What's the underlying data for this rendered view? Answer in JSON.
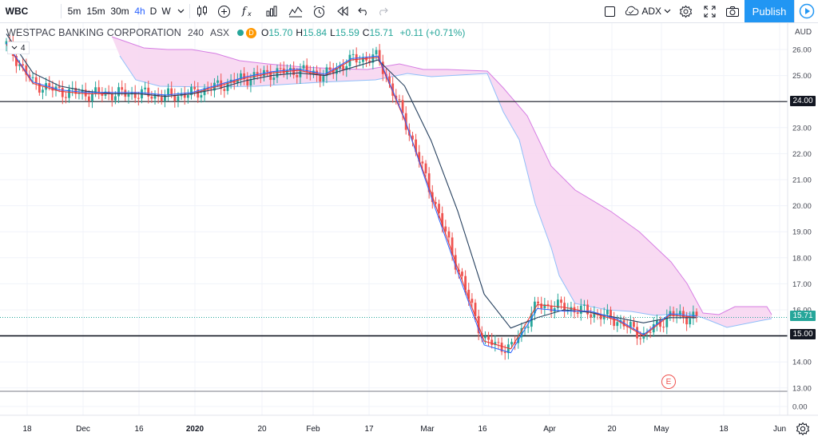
{
  "toolbar": {
    "symbol": "WBC",
    "intervals": [
      "5m",
      "15m",
      "30m",
      "4h",
      "D",
      "W"
    ],
    "active_interval": "4h",
    "indicator_name": "ADX",
    "publish_label": "Publish"
  },
  "legend": {
    "title": "WESTPAC BANKING CORPORATION",
    "resolution": "240",
    "exchange": "ASX",
    "badge": "D",
    "open_key": "O",
    "open": "15.70",
    "high_key": "H",
    "high": "15.84",
    "low_key": "L",
    "low": "15.59",
    "close_key": "C",
    "close": "15.71",
    "change": "+0.11 (+0.71%)",
    "indicator_count": "4"
  },
  "price_axis": {
    "currency": "AUD",
    "ticks": [
      "26.00",
      "25.00",
      "24.00",
      "23.00",
      "22.00",
      "21.00",
      "20.00",
      "19.00",
      "18.00",
      "17.00",
      "16.00",
      "15.00",
      "14.00",
      "13.00",
      "0.00"
    ],
    "level_labels": [
      "24.00",
      "15.00"
    ],
    "last_price_label": "15.71"
  },
  "time_axis": {
    "labels": [
      "18",
      "Dec",
      "16",
      "2020",
      "20",
      "Feb",
      "17",
      "Mar",
      "16",
      "Apr",
      "20",
      "May",
      "18",
      "Jun"
    ]
  },
  "earnings_badge": "E",
  "colors": {
    "up": "#26a69a",
    "down": "#ef5350",
    "cloud": "#f7d4f0",
    "cloud_edge": "#d67ee3",
    "accent": "#2962ff",
    "publish": "#2196f3"
  },
  "chart_data": {
    "type": "line",
    "title": "WESTPAC BANKING CORPORATION",
    "xlabel": "",
    "ylabel": "",
    "ylim": [
      13,
      26.5
    ],
    "x": [
      "Nov 18",
      "Nov 25",
      "Dec 2",
      "Dec 9",
      "Dec 16",
      "Dec 23",
      "Jan 1",
      "Jan 6",
      "Jan 13",
      "Jan 20",
      "Jan 27",
      "Feb 3",
      "Feb 10",
      "Feb 17",
      "Feb 24",
      "Mar 2",
      "Mar 9",
      "Mar 16",
      "Mar 20",
      "Mar 23",
      "Mar 30",
      "Apr 6",
      "Apr 13",
      "Apr 20",
      "Apr 27",
      "May 4",
      "May 8"
    ],
    "series": [
      {
        "values": [
          26.2,
          24.7,
          24.4,
          24.3,
          24.3,
          24.3,
          24.2,
          24.3,
          24.6,
          24.9,
          25.1,
          25.2,
          25.0,
          25.6,
          25.7,
          23.3,
          20.5,
          17.6,
          14.8,
          14.5,
          16.2,
          16.1,
          15.9,
          15.6,
          15.0,
          15.8,
          15.71
        ]
      },
      {
        "values": [
          26.6,
          25.1,
          24.6,
          24.4,
          24.3,
          24.3,
          24.2,
          24.3,
          24.5,
          24.8,
          25.0,
          25.1,
          25.0,
          25.3,
          25.6,
          24.6,
          22.5,
          19.8,
          16.6,
          15.3,
          15.7,
          16.0,
          15.9,
          15.7,
          15.5,
          15.7,
          15.7
        ]
      }
    ],
    "levels": [
      24.0,
      15.0
    ],
    "last_price": 15.71
  }
}
